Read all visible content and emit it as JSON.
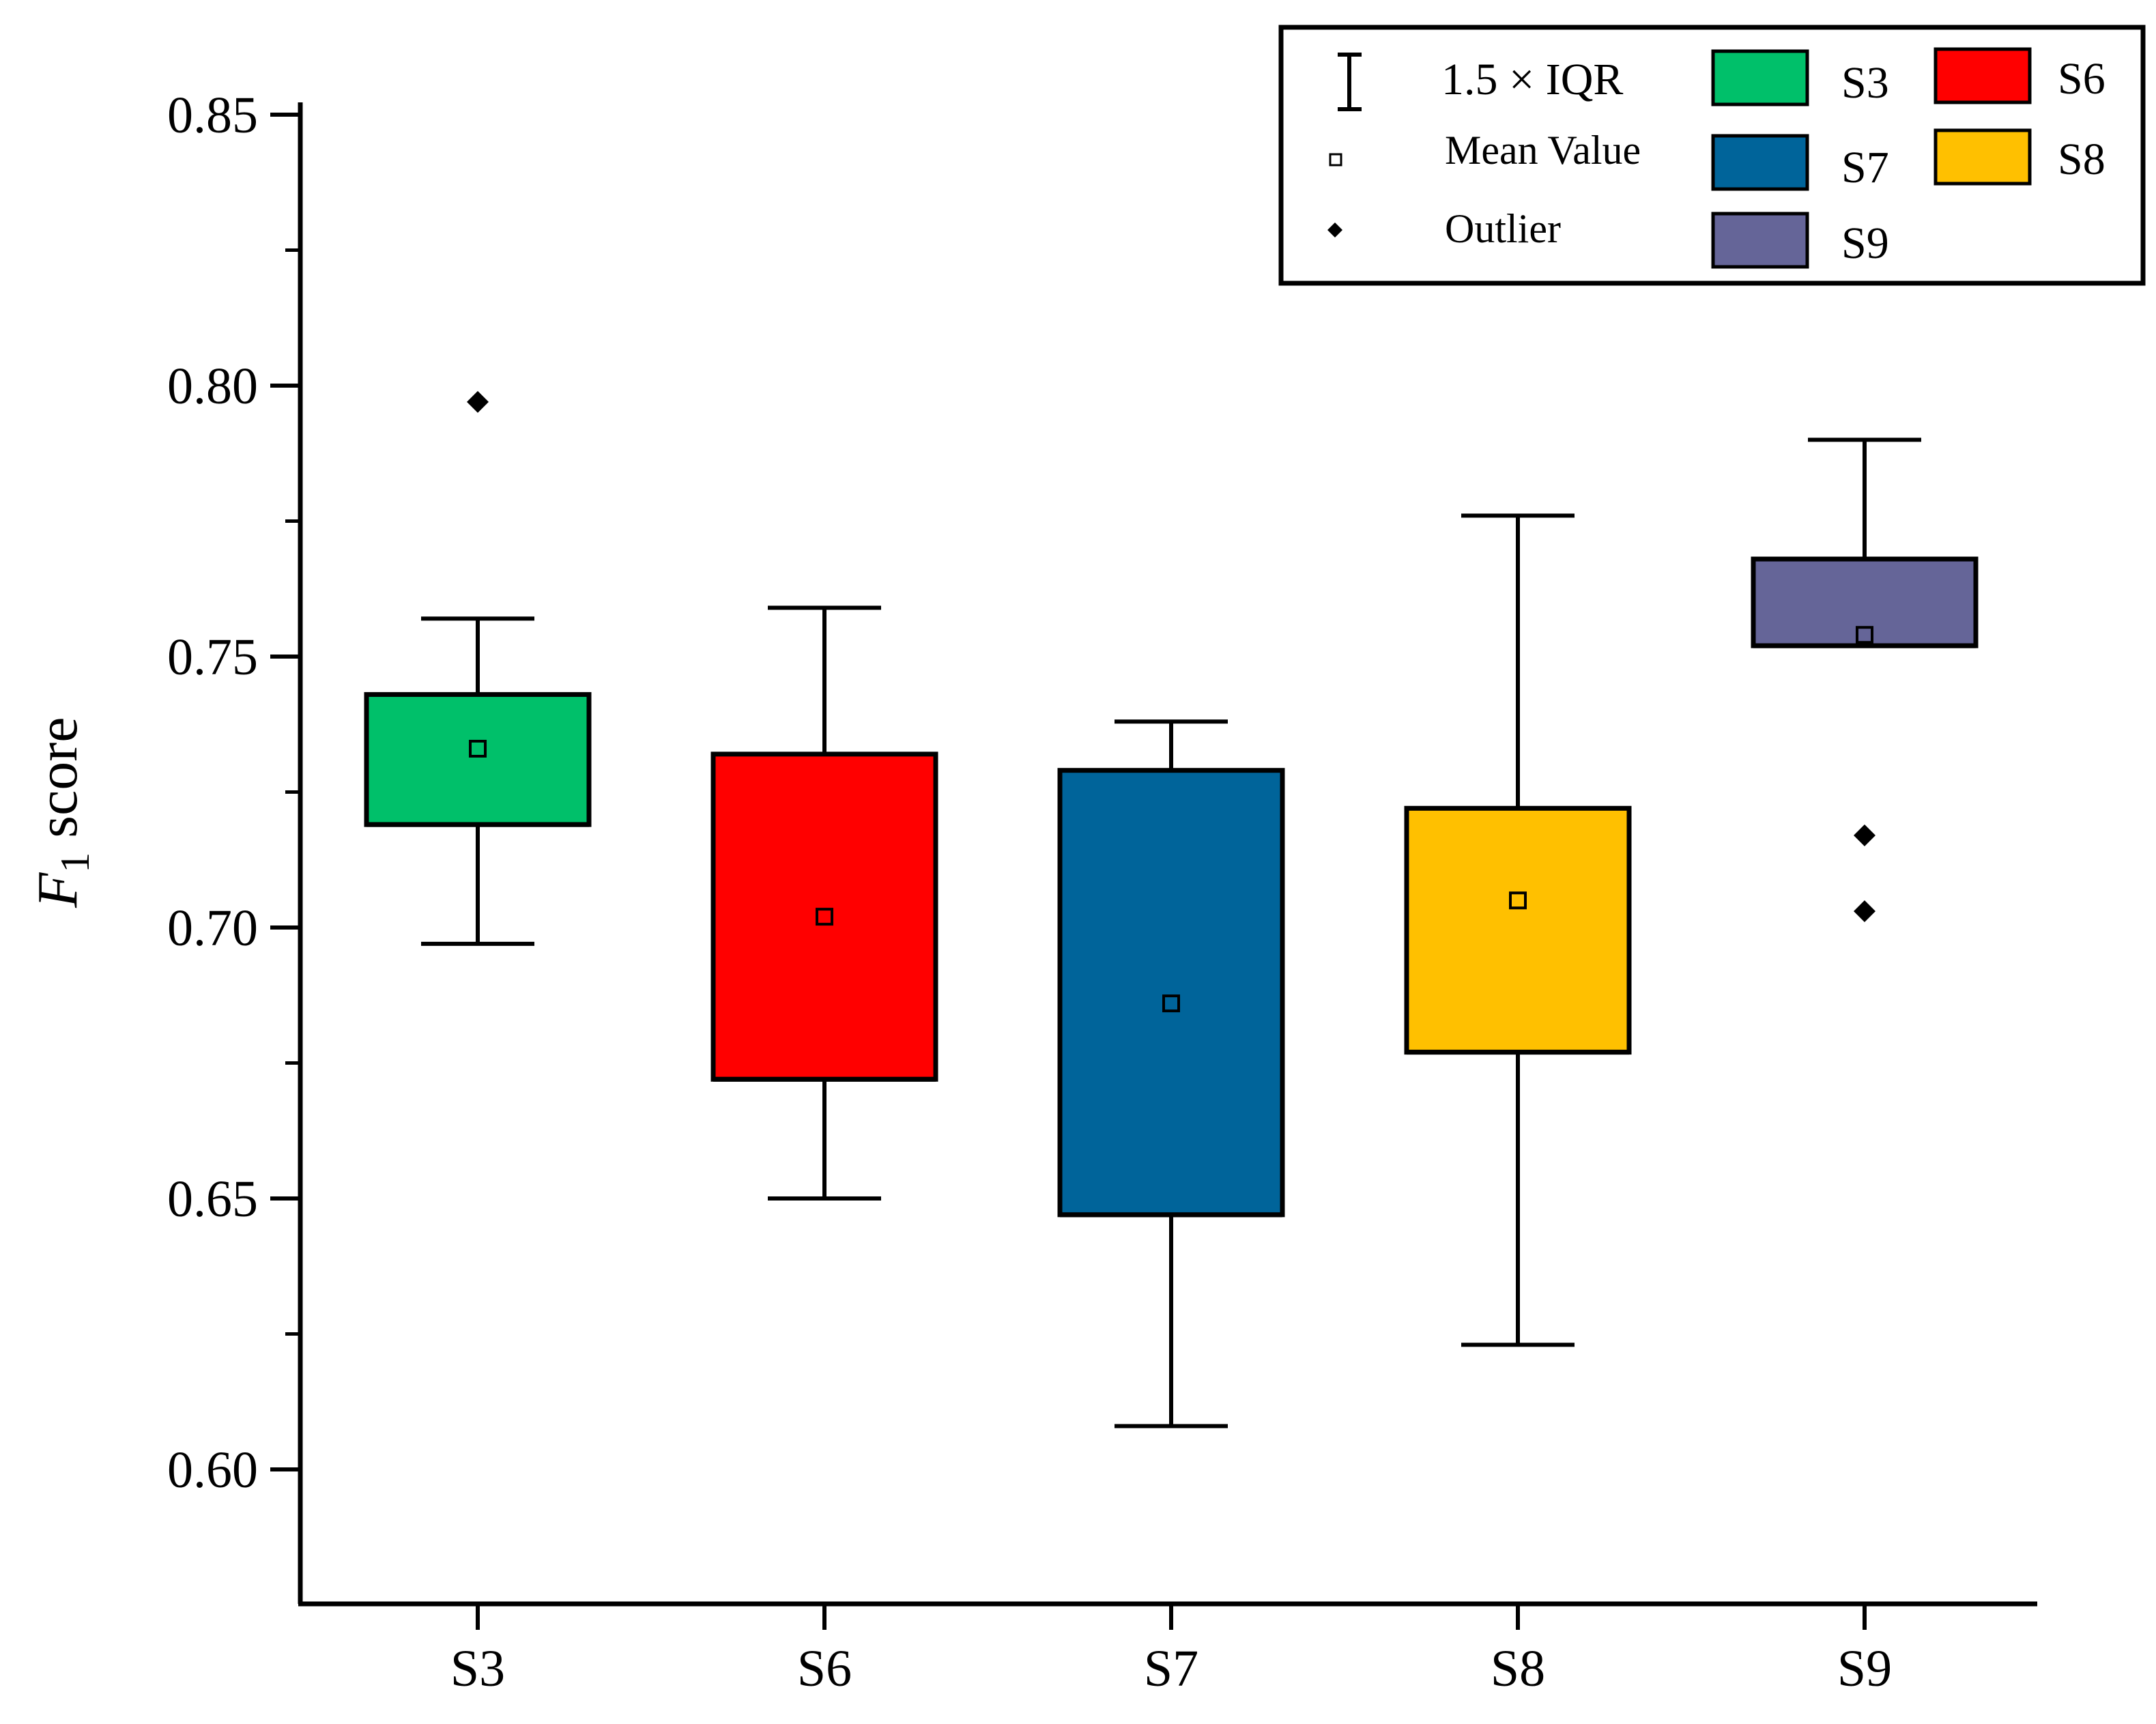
{
  "chart_data": {
    "type": "box",
    "title": "",
    "xlabel": "",
    "ylabel": {
      "main": "F",
      "subscript": "1",
      "suffix": " score"
    },
    "ylim": [
      0.575,
      0.85
    ],
    "yticks": [
      0.6,
      0.65,
      0.7,
      0.75,
      0.8,
      0.85
    ],
    "ytick_labels": [
      "0.60",
      "0.65",
      "0.70",
      "0.75",
      "0.80",
      "0.85"
    ],
    "categories": [
      "S3",
      "S6",
      "S7",
      "S8",
      "S9"
    ],
    "series": [
      {
        "name": "S3",
        "color": "#00C06A",
        "whisker_low": 0.697,
        "q1": 0.719,
        "median": 0.719,
        "q3": 0.743,
        "whisker_high": 0.757,
        "mean": 0.733,
        "outliers": [
          0.797
        ]
      },
      {
        "name": "S6",
        "color": "#FF0000",
        "whisker_low": 0.65,
        "q1": 0.672,
        "median": 0.672,
        "q3": 0.732,
        "whisker_high": 0.759,
        "mean": 0.702,
        "outliers": []
      },
      {
        "name": "S7",
        "color": "#00649A",
        "whisker_low": 0.608,
        "q1": 0.647,
        "median": 0.647,
        "q3": 0.729,
        "whisker_high": 0.738,
        "mean": 0.686,
        "outliers": []
      },
      {
        "name": "S8",
        "color": "#FFC000",
        "whisker_low": 0.623,
        "q1": 0.677,
        "median": 0.677,
        "q3": 0.722,
        "whisker_high": 0.776,
        "mean": 0.705,
        "outliers": []
      },
      {
        "name": "S9",
        "color": "#656598",
        "whisker_low": 0.752,
        "q1": 0.752,
        "median": 0.752,
        "q3": 0.768,
        "whisker_high": 0.79,
        "mean": 0.754,
        "outliers": [
          0.717,
          0.703
        ]
      }
    ],
    "legend": {
      "position": "top-right",
      "symbols": {
        "iqr": "1.5 × IQR",
        "mean": "Mean Value",
        "outlier": "Outlier"
      },
      "entries": [
        "S3",
        "S6",
        "S7",
        "S8",
        "S9"
      ]
    }
  },
  "icons": {
    "iqr": "whisker-icon",
    "mean": "hollow-square-icon",
    "outlier": "diamond-icon"
  }
}
